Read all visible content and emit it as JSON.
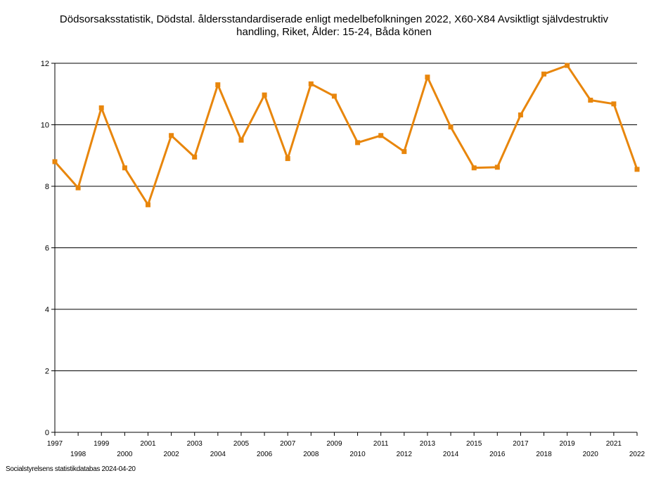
{
  "title": {
    "line1": "Dödsorsaksstatistik, Dödstal. åldersstandardiserade enligt medelbefolkningen 2022, X60-X84 Avsiktligt självdestruktiv",
    "line2": "handling, Riket, Ålder: 15-24, Båda könen"
  },
  "source": "Socialstyrelsens statistikdatabas 2024-04-20",
  "chart_data": {
    "type": "line",
    "title": "Dödsorsaksstatistik, Dödstal. åldersstandardiserade enligt medelbefolkningen 2022, X60-X84 Avsiktligt självdestruktiv handling, Riket, Ålder: 15-24, Båda könen",
    "xlabel": "",
    "ylabel": "",
    "ylim": [
      0,
      12
    ],
    "yticks": [
      0,
      2,
      4,
      6,
      8,
      10,
      12
    ],
    "grid": "horizontal",
    "line_color": "#e8860c",
    "x": [
      "1997",
      "1998",
      "1999",
      "2000",
      "2001",
      "2002",
      "2003",
      "2004",
      "2005",
      "2006",
      "2007",
      "2008",
      "2009",
      "2010",
      "2011",
      "2012",
      "2013",
      "2014",
      "2015",
      "2016",
      "2017",
      "2018",
      "2019",
      "2020",
      "2021",
      "2022"
    ],
    "series": [
      {
        "values": [
          8.8,
          7.95,
          10.55,
          8.6,
          7.4,
          9.65,
          8.95,
          11.3,
          9.5,
          10.97,
          8.9,
          11.33,
          10.93,
          9.42,
          9.65,
          9.13,
          11.55,
          9.93,
          8.6,
          8.62,
          10.32,
          11.65,
          11.93,
          10.8,
          10.68,
          8.55
        ]
      }
    ]
  }
}
